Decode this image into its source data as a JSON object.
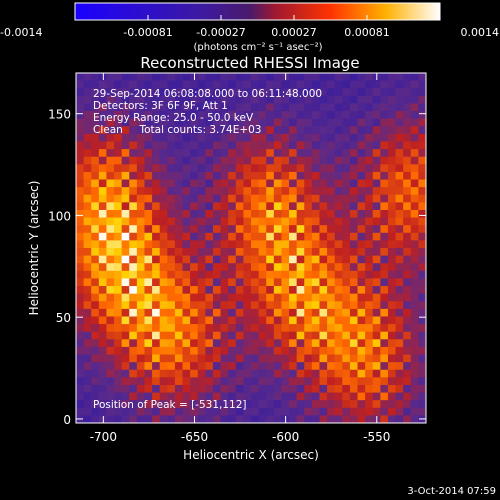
{
  "colorbar": {
    "ticks": [
      "-0.0014",
      "-0.00081",
      "-0.00027",
      "0.00027",
      "0.00081",
      "0.0014"
    ],
    "unit_label": "(photons cm⁻² s⁻¹ asec⁻²)"
  },
  "chart_data": {
    "type": "heatmap",
    "title": "Reconstructed RHESSI Image",
    "xlabel": "Heliocentric X (arcsec)",
    "ylabel": "Heliocentric Y (arcsec)",
    "xlim": [
      -715,
      -523
    ],
    "ylim": [
      -2,
      170
    ],
    "xticks": [
      -700,
      -650,
      -600,
      -550
    ],
    "yticks": [
      0,
      50,
      100,
      150
    ],
    "colorbar_range": [
      -0.0014,
      0.0014
    ],
    "colormap": [
      "#2200dd",
      "#3b1e9c",
      "#5a2a8a",
      "#c02020",
      "#ff6a00",
      "#ffd000",
      "#ffffff"
    ],
    "grid": false,
    "annotations": [
      "29-Sep-2014 06:08:08.000 to 06:11:48.000",
      "Detectors: 3F 6F 9F, Att 1",
      "Energy Range: 25.0 - 50.0 keV",
      "Clean     Total counts: 3.74E+03",
      "Position of Peak = [-531,112]"
    ],
    "peak": [
      -531,
      112
    ],
    "bright_regions": [
      {
        "x": -700,
        "y": 110
      },
      {
        "x": -690,
        "y": 70
      },
      {
        "x": -660,
        "y": 40
      },
      {
        "x": -610,
        "y": 105
      },
      {
        "x": -590,
        "y": 60
      },
      {
        "x": -555,
        "y": 30
      },
      {
        "x": -531,
        "y": 112
      }
    ]
  },
  "timestamp": "3-Oct-2014 07:59"
}
